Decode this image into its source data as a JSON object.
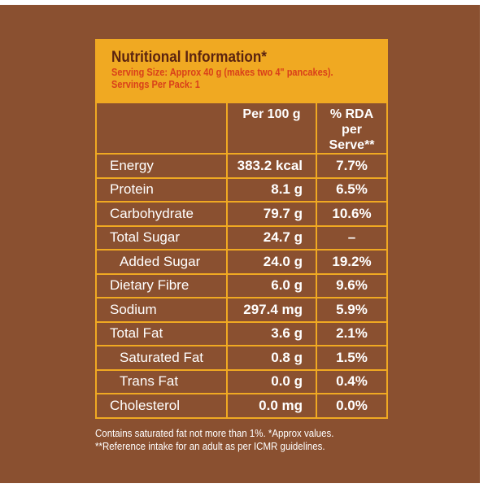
{
  "title": "Nutritional Information*",
  "serving_size": "Serving Size: Approx 40 g (makes two 4\" pancakes).",
  "servings_per_pack": "Servings Per Pack: 1",
  "columns": [
    "",
    "Per 100 g",
    "% RDA",
    "per Serve**"
  ],
  "rows": [
    {
      "name": "Energy",
      "per100": "383.2 kcal",
      "rda": "7.7%"
    },
    {
      "name": "Protein",
      "per100": "8.1 g",
      "rda": "6.5%"
    },
    {
      "name": "Carbohydrate",
      "per100": "79.7 g",
      "rda": "10.6%"
    },
    {
      "name": "Total Sugar",
      "per100": "24.7 g",
      "rda": "–"
    },
    {
      "name": "Added Sugar",
      "per100": "24.0 g",
      "rda": "19.2%"
    },
    {
      "name": "Dietary Fibre",
      "per100": "6.0 g",
      "rda": "9.6%"
    },
    {
      "name": "Sodium",
      "per100": "297.4 mg",
      "rda": "5.9%"
    },
    {
      "name": "Total Fat",
      "per100": "3.6 g",
      "rda": "2.1%"
    },
    {
      "name": "Saturated Fat",
      "per100": "0.8 g",
      "rda": "1.5%"
    },
    {
      "name": "Trans Fat",
      "per100": "0.0 g",
      "rda": "0.4%"
    },
    {
      "name": "Cholesterol",
      "per100": "0.0 mg",
      "rda": "0.0%"
    }
  ],
  "indented": [
    4,
    8,
    9
  ],
  "footnotes": [
    "Contains saturated fat not more than 1%. *Approx values.",
    "**Reference intake for an adult as per ICMR guidelines."
  ]
}
